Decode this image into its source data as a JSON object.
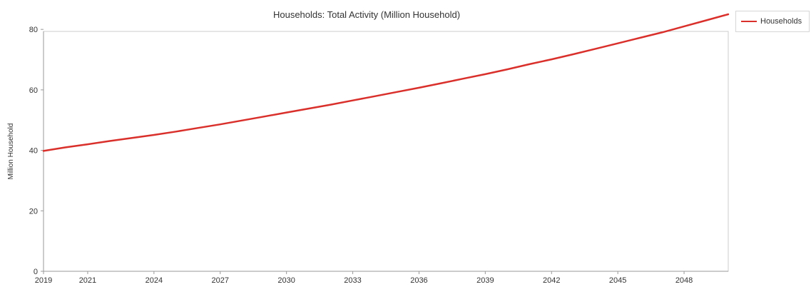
{
  "chart_data": {
    "type": "line",
    "title": "Households: Total Activity (Million Household)",
    "xlabel": "",
    "ylabel": "Million Household",
    "x": [
      2019,
      2020,
      2021,
      2022,
      2023,
      2024,
      2025,
      2026,
      2027,
      2028,
      2029,
      2030,
      2031,
      2032,
      2033,
      2034,
      2035,
      2036,
      2037,
      2038,
      2039,
      2040,
      2041,
      2042,
      2043,
      2044,
      2045,
      2046,
      2047,
      2048,
      2049,
      2050
    ],
    "x_ticks": [
      "2019",
      "2021",
      "2024",
      "2027",
      "2030",
      "2033",
      "2036",
      "2039",
      "2042",
      "2045",
      "2048"
    ],
    "y_ticks": [
      "0",
      "20",
      "40",
      "60",
      "80"
    ],
    "xlim": [
      2019,
      2050
    ],
    "ylim": [
      0,
      85
    ],
    "grid": false,
    "legend_position": "top-right",
    "series": [
      {
        "name": "Households",
        "color": "#d9302c",
        "values": [
          39.8,
          41.0,
          42.0,
          43.1,
          44.1,
          45.1,
          46.2,
          47.4,
          48.6,
          49.9,
          51.2,
          52.5,
          53.8,
          55.1,
          56.5,
          57.9,
          59.3,
          60.7,
          62.2,
          63.7,
          65.2,
          66.8,
          68.5,
          70.1,
          71.8,
          73.6,
          75.4,
          77.2,
          79.0,
          81.0,
          83.0,
          85.0
        ]
      }
    ]
  }
}
